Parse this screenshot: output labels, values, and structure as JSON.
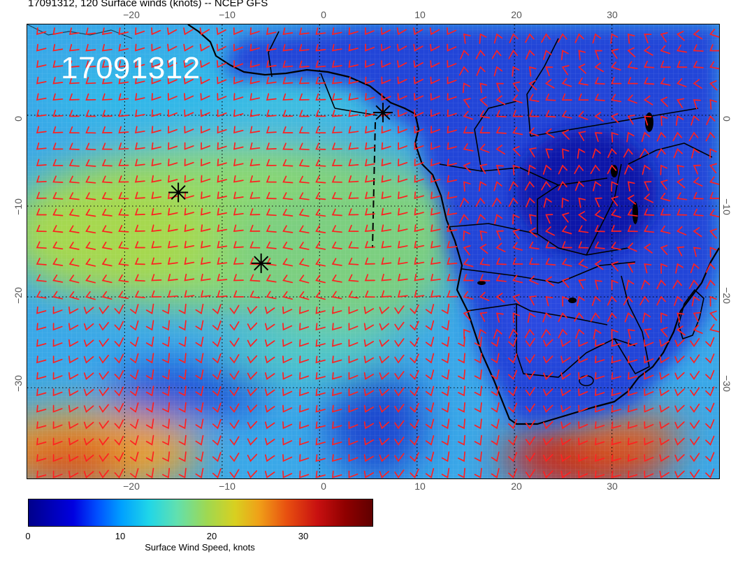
{
  "title": "17091312, 120 Surface winds (knots) -- NCEP GFS",
  "stamp": "17091312",
  "axes": {
    "lon_ticks": [
      "−20",
      "−10",
      "0",
      "10",
      "20",
      "30"
    ],
    "lat_ticks": [
      "0",
      "−10",
      "−20",
      "−30"
    ],
    "lon_range": [
      -30,
      41
    ],
    "lat_range": [
      -40,
      10
    ]
  },
  "colorbar": {
    "title": "Surface Wind Speed, knots",
    "labels": [
      "0",
      "10",
      "20",
      "30"
    ],
    "range": [
      0,
      36
    ]
  },
  "markers": [
    {
      "lon": 6.5,
      "lat": 0.3
    },
    {
      "lon": -14.5,
      "lat": -8.5
    },
    {
      "lon": -6.0,
      "lat": -16.3
    }
  ],
  "colors": {
    "barb": "#ff2020",
    "land": "#2040d0",
    "ocean_trade": "#7dd878",
    "ocean_calm": "#2a70e0",
    "storm": "#d81818",
    "coast": "#000000"
  }
}
